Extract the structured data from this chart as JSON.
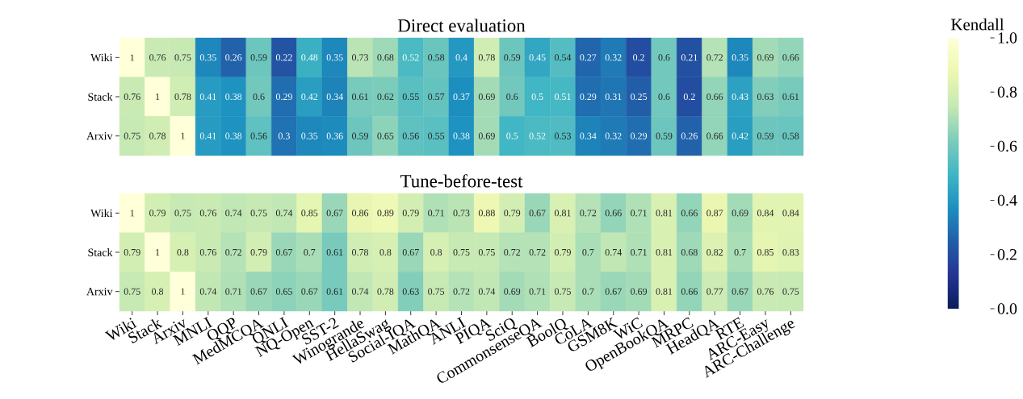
{
  "chart_data": [
    {
      "type": "heatmap",
      "title": "Direct evaluation",
      "clabel": "Kendall",
      "clim": [
        0,
        1
      ],
      "cticks": [
        {
          "value": 0,
          "label": "0.0"
        },
        {
          "value": 0.2,
          "label": "0.2"
        },
        {
          "value": 0.4,
          "label": "0.4"
        },
        {
          "value": 0.6,
          "label": "0.6"
        },
        {
          "value": 0.8,
          "label": "0.8"
        },
        {
          "value": 1,
          "label": "1.0"
        }
      ],
      "categories": [
        null,
        null,
        null,
        null,
        null,
        null,
        null,
        null,
        null,
        null,
        null,
        null,
        null,
        null,
        null,
        null,
        null,
        null,
        null,
        null,
        null,
        null,
        null,
        null,
        null,
        null,
        null
      ],
      "y_categories": [
        "Wiki",
        "Stack",
        "Arxiv"
      ],
      "cells": [
        [
          1,
          0.76,
          0.75,
          0.35,
          0.26,
          0.59,
          0.22,
          0.48,
          0.35,
          0.73,
          0.68,
          0.52,
          0.58,
          0.4,
          0.78,
          0.59,
          0.45,
          0.54,
          0.27,
          0.32,
          0.2,
          0.6,
          0.21,
          0.72,
          0.35,
          0.69,
          0.66
        ],
        [
          0.76,
          1,
          0.78,
          0.41,
          0.38,
          0.6,
          0.29,
          0.42,
          0.34,
          0.61,
          0.62,
          0.55,
          0.57,
          0.37,
          0.69,
          0.6,
          0.5,
          0.51,
          0.29,
          0.31,
          0.25,
          0.6,
          0.2,
          0.66,
          0.43,
          0.63,
          0.61
        ],
        [
          0.75,
          0.78,
          1,
          0.41,
          0.38,
          0.56,
          0.3,
          0.35,
          0.36,
          0.59,
          0.65,
          0.56,
          0.55,
          0.38,
          0.69,
          0.5,
          0.52,
          0.53,
          0.34,
          0.32,
          0.29,
          0.59,
          0.26,
          0.66,
          0.42,
          0.59,
          0.58
        ]
      ],
      "data_labels": true,
      "tick_labels": "y"
    },
    {
      "type": "heatmap",
      "title": "Tune-before-test",
      "categories": [
        "Wiki",
        "Stack",
        "Arxiv",
        "MNLI",
        "QQP",
        "MedMCQA",
        "QNLI",
        "NQ-Open",
        "SST-2",
        "Winogrande",
        "HellaSwag",
        "Social-IQA",
        "MathQA",
        "ANLI",
        "PIQA",
        "SciQ",
        "CommonsenseQA",
        "BoolQ",
        "CoLA",
        "GSM8K",
        "WiC",
        "OpenBookQA",
        "MRPC",
        "HeadQA",
        "RTE",
        "ARC-Easy",
        "ARC-Challenge"
      ],
      "y_categories": [
        "Wiki",
        "Stack",
        "Arxiv"
      ],
      "cells": [
        [
          1,
          0.79,
          0.75,
          0.76,
          0.74,
          0.75,
          0.74,
          0.85,
          0.67,
          0.86,
          0.89,
          0.79,
          0.71,
          0.73,
          0.88,
          0.79,
          0.67,
          0.81,
          0.72,
          0.66,
          0.71,
          0.81,
          0.66,
          0.87,
          0.69,
          0.84,
          0.84
        ],
        [
          0.79,
          1,
          0.8,
          0.76,
          0.72,
          0.79,
          0.67,
          0.7,
          0.61,
          0.78,
          0.8,
          0.67,
          0.8,
          0.75,
          0.75,
          0.72,
          0.72,
          0.79,
          0.7,
          0.74,
          0.71,
          0.81,
          0.68,
          0.82,
          0.7,
          0.85,
          0.83
        ],
        [
          0.75,
          0.8,
          1,
          0.74,
          0.71,
          0.67,
          0.65,
          0.67,
          0.61,
          0.74,
          0.78,
          0.63,
          0.75,
          0.72,
          0.74,
          0.69,
          0.71,
          0.75,
          0.7,
          0.67,
          0.69,
          0.81,
          0.66,
          0.77,
          0.67,
          0.76,
          0.75
        ]
      ],
      "data_labels": true
    }
  ]
}
